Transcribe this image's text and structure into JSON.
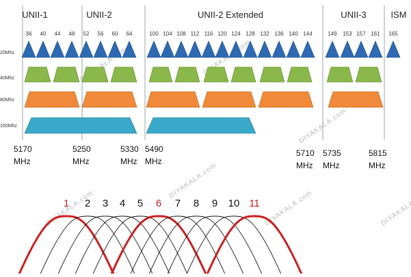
{
  "bands": [
    {
      "name": "UNII-1"
    },
    {
      "name": "UNII-2"
    },
    {
      "name": "UNII-2 Extended"
    },
    {
      "name": "UNII-3"
    },
    {
      "name": "ISM"
    }
  ],
  "channels": [
    "36",
    "40",
    "44",
    "48",
    "52",
    "56",
    "60",
    "64",
    "100",
    "104",
    "108",
    "112",
    "116",
    "120",
    "124",
    "128",
    "132",
    "136",
    "140",
    "144",
    "149",
    "153",
    "157",
    "161",
    "165"
  ],
  "row_labels": [
    "20Mhz",
    "40Mhz",
    "80Mhz",
    "160Mhz"
  ],
  "frequencies": [
    {
      "value": "5170",
      "unit": "MHz"
    },
    {
      "value": "5250",
      "unit": "MHz"
    },
    {
      "value": "5330",
      "unit": "MHz"
    },
    {
      "value": "5490",
      "unit": "MHz"
    },
    {
      "value": "5710",
      "unit": "MHz"
    },
    {
      "value": "5735",
      "unit": "MHz"
    },
    {
      "value": "5815",
      "unit": "MHz"
    }
  ],
  "curve_numbers": [
    "1",
    "2",
    "3",
    "4",
    "5",
    "6",
    "7",
    "8",
    "9",
    "10",
    "11"
  ],
  "highlighted_channels": [
    "1",
    "6",
    "11"
  ],
  "watermark": "DIYAKALA.com",
  "colors": {
    "band_20": "#2e69b3",
    "band_40": "#8bb84a",
    "band_80": "#f08a3a",
    "band_160": "#3aa8c9",
    "highlight": "#cc1f1f",
    "curve": "#111111",
    "divider": "#9aa3ad"
  }
}
